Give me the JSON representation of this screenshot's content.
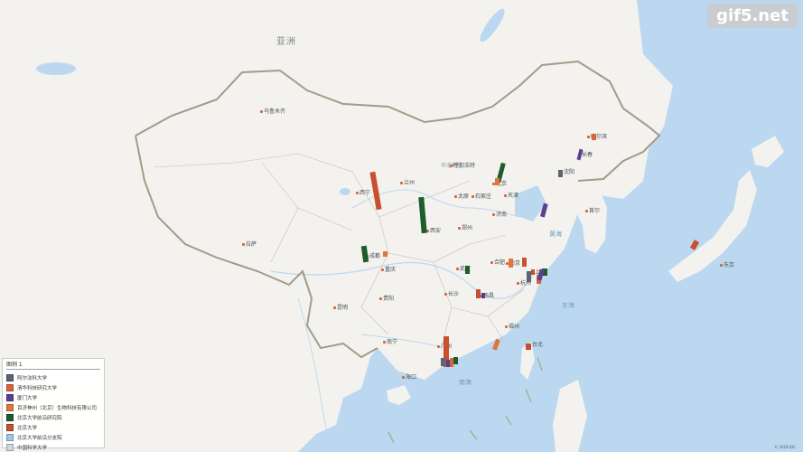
{
  "watermark": "gif5.net",
  "copyright": "© 2018 IDC",
  "region_labels": {
    "asia": "亚洲",
    "north_china": "华北地区"
  },
  "legend": {
    "title": "图例 1",
    "items": [
      {
        "label": "阿尔法科大学",
        "color": "#5a6473"
      },
      {
        "label": "清华科技研究大学",
        "color": "#d9643c"
      },
      {
        "label": "厦门大学",
        "color": "#5b3f8e"
      },
      {
        "label": "百济神州（北京）生物科技有限公司",
        "color": "#e0773a"
      },
      {
        "label": "北京大学前沿研究院",
        "color": "#1f5c2c"
      },
      {
        "label": "北京大学",
        "color": "#c8502d"
      },
      {
        "label": "北京大学前沿分支院",
        "color": "#9fc5e8"
      },
      {
        "label": "中国科学大学",
        "color": "#cfd6dd"
      }
    ]
  },
  "cities": [
    {
      "name": "乌鲁木齐",
      "color": "#d9643c"
    },
    {
      "name": "西宁",
      "color": "#d9643c"
    },
    {
      "name": "兰州",
      "color": "#d9643c"
    },
    {
      "name": "呼和浩特",
      "color": "#d9643c"
    },
    {
      "name": "北京",
      "color": "#d9643c"
    },
    {
      "name": "天津",
      "color": "#d9643c"
    },
    {
      "name": "太原",
      "color": "#d9643c"
    },
    {
      "name": "石家庄",
      "color": "#d9643c"
    },
    {
      "name": "济南",
      "color": "#d9643c"
    },
    {
      "name": "郑州",
      "color": "#d9643c"
    },
    {
      "name": "西安",
      "color": "#d9643c"
    },
    {
      "name": "拉萨",
      "color": "#d9643c"
    },
    {
      "name": "成都",
      "color": "#d9643c"
    },
    {
      "name": "重庆",
      "color": "#d9643c"
    },
    {
      "name": "武汉",
      "color": "#d9643c"
    },
    {
      "name": "合肥",
      "color": "#d9643c"
    },
    {
      "name": "南京",
      "color": "#d9643c"
    },
    {
      "name": "上海",
      "color": "#d9643c"
    },
    {
      "name": "杭州",
      "color": "#d9643c"
    },
    {
      "name": "长沙",
      "color": "#d9643c"
    },
    {
      "name": "贵阳",
      "color": "#d9643c"
    },
    {
      "name": "昆明",
      "color": "#d9643c"
    },
    {
      "name": "南宁",
      "color": "#d9643c"
    },
    {
      "name": "南昌",
      "color": "#d9643c"
    },
    {
      "name": "福州",
      "color": "#d9643c"
    },
    {
      "name": "广州",
      "color": "#d9643c"
    },
    {
      "name": "台北",
      "color": "#d9643c"
    },
    {
      "name": "海口",
      "color": "#d9643c"
    },
    {
      "name": "沈阳",
      "color": "#d9643c"
    },
    {
      "name": "长春",
      "color": "#d9643c"
    },
    {
      "name": "哈尔滨",
      "color": "#d9643c"
    },
    {
      "name": "首尔",
      "color": "#d9643c"
    },
    {
      "name": "东京",
      "color": "#d9643c"
    },
    {
      "name": "东海",
      "color": "#d9643c"
    },
    {
      "name": "黄海",
      "color": "#d9643c"
    }
  ],
  "seas": {
    "south_china_sea": "南海",
    "east_sea": "东海",
    "yellow_sea": "黄海"
  },
  "bars": [
    {
      "color": "#c8502d"
    },
    {
      "color": "#1f5c2c"
    },
    {
      "color": "#1f5c2c"
    },
    {
      "color": "#1f5c2c"
    },
    {
      "color": "#e0773a"
    },
    {
      "color": "#5b3f8e"
    },
    {
      "color": "#5b3f8e"
    },
    {
      "color": "#5a6473"
    },
    {
      "color": "#d9643c"
    },
    {
      "color": "#1f5c2c"
    },
    {
      "color": "#c8502d"
    },
    {
      "color": "#5b3f8e"
    },
    {
      "color": "#e0773a"
    },
    {
      "color": "#c8502d"
    },
    {
      "color": "#5a6473"
    },
    {
      "color": "#1f5c2c"
    },
    {
      "color": "#d9643c"
    },
    {
      "color": "#c8502d"
    },
    {
      "color": "#5b3f8e"
    },
    {
      "color": "#e0773a"
    },
    {
      "color": "#c8502d"
    },
    {
      "color": "#c8502d"
    },
    {
      "color": "#c8502d"
    },
    {
      "color": "#5a6473"
    },
    {
      "color": "#d9643c"
    },
    {
      "color": "#1f5c2c"
    },
    {
      "color": "#e0773a"
    },
    {
      "color": "#5b3f8e"
    }
  ]
}
